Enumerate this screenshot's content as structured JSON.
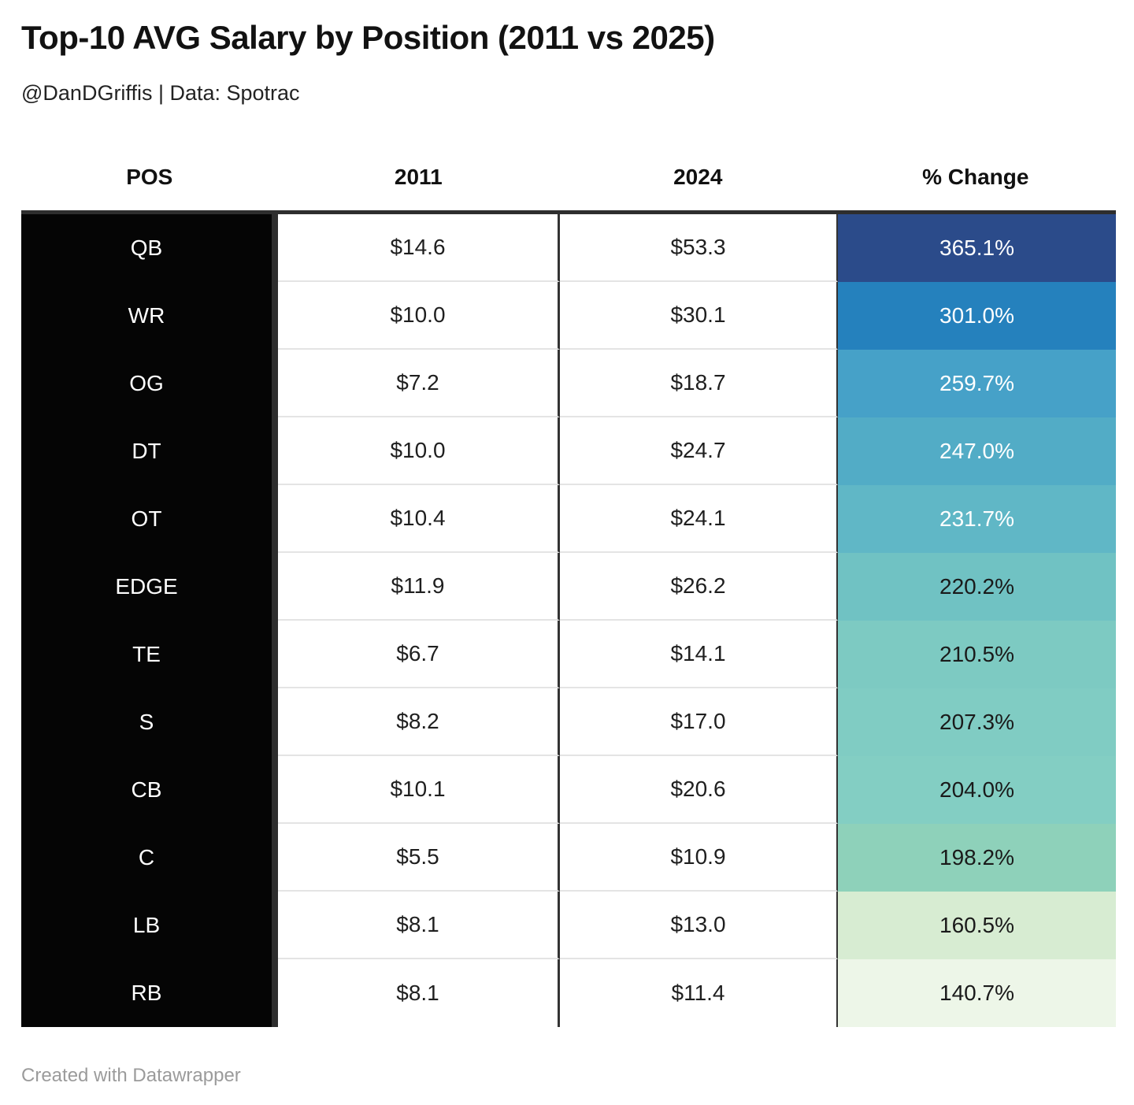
{
  "page": {
    "title": "Top-10 AVG Salary by Position (2011 vs 2025)",
    "subtitle": "@DanDGriffis | Data: Spotrac",
    "footer": "Created with Datawrapper"
  },
  "table": {
    "columns": [
      "POS",
      "2011",
      "2024",
      "% Change"
    ],
    "rows": [
      {
        "pos": "QB",
        "v2011": "$14.6",
        "v2024": "$53.3",
        "change": "365.1%",
        "bg": "#2b4b8a",
        "fg": "#ffffff"
      },
      {
        "pos": "WR",
        "v2011": "$10.0",
        "v2024": "$30.1",
        "change": "301.0%",
        "bg": "#2581bd",
        "fg": "#ffffff"
      },
      {
        "pos": "OG",
        "v2011": "$7.2",
        "v2024": "$18.7",
        "change": "259.7%",
        "bg": "#46a1c8",
        "fg": "#ffffff"
      },
      {
        "pos": "DT",
        "v2011": "$10.0",
        "v2024": "$24.7",
        "change": "247.0%",
        "bg": "#52acc6",
        "fg": "#ffffff"
      },
      {
        "pos": "OT",
        "v2011": "$10.4",
        "v2024": "$24.1",
        "change": "231.7%",
        "bg": "#60b7c6",
        "fg": "#ffffff"
      },
      {
        "pos": "EDGE",
        "v2011": "$11.9",
        "v2024": "$26.2",
        "change": "220.2%",
        "bg": "#70c2c3",
        "fg": "#1a1a1a"
      },
      {
        "pos": "TE",
        "v2011": "$6.7",
        "v2024": "$14.1",
        "change": "210.5%",
        "bg": "#7dcac2",
        "fg": "#1a1a1a"
      },
      {
        "pos": "S",
        "v2011": "$8.2",
        "v2024": "$17.0",
        "change": "207.3%",
        "bg": "#80ccc3",
        "fg": "#1a1a1a"
      },
      {
        "pos": "CB",
        "v2011": "$10.1",
        "v2024": "$20.6",
        "change": "204.0%",
        "bg": "#83cec3",
        "fg": "#1a1a1a"
      },
      {
        "pos": "C",
        "v2011": "$5.5",
        "v2024": "$10.9",
        "change": "198.2%",
        "bg": "#8ed1ba",
        "fg": "#1a1a1a"
      },
      {
        "pos": "LB",
        "v2011": "$8.1",
        "v2024": "$13.0",
        "change": "160.5%",
        "bg": "#d7ecd2",
        "fg": "#1a1a1a"
      },
      {
        "pos": "RB",
        "v2011": "$8.1",
        "v2024": "$11.4",
        "change": "140.7%",
        "bg": "#edf6e8",
        "fg": "#1a1a1a"
      }
    ]
  },
  "colors": {
    "table_top_border": "#2e2e2e",
    "pos_column_bg": "#050505",
    "pos_column_divider": "#2e2e2e",
    "row_separator": "#e4e4e4",
    "cell_text_dark": "#1f1f1f",
    "footer_text": "#9b9b9b"
  },
  "chart_data": {
    "type": "table",
    "title": "Top-10 AVG Salary by Position (2011 vs 2025)",
    "subtitle": "@DanDGriffis | Data: Spotrac",
    "columns": [
      "POS",
      "2011",
      "2024",
      "% Change"
    ],
    "rows": [
      {
        "pos": "QB",
        "salary_2011": 14.6,
        "salary_2024": 53.3,
        "pct_change": 365.1
      },
      {
        "pos": "WR",
        "salary_2011": 10.0,
        "salary_2024": 30.1,
        "pct_change": 301.0
      },
      {
        "pos": "OG",
        "salary_2011": 7.2,
        "salary_2024": 18.7,
        "pct_change": 259.7
      },
      {
        "pos": "DT",
        "salary_2011": 10.0,
        "salary_2024": 24.7,
        "pct_change": 247.0
      },
      {
        "pos": "OT",
        "salary_2011": 10.4,
        "salary_2024": 24.1,
        "pct_change": 231.7
      },
      {
        "pos": "EDGE",
        "salary_2011": 11.9,
        "salary_2024": 26.2,
        "pct_change": 220.2
      },
      {
        "pos": "TE",
        "salary_2011": 6.7,
        "salary_2024": 14.1,
        "pct_change": 210.5
      },
      {
        "pos": "S",
        "salary_2011": 8.2,
        "salary_2024": 17.0,
        "pct_change": 207.3
      },
      {
        "pos": "CB",
        "salary_2011": 10.1,
        "salary_2024": 20.6,
        "pct_change": 204.0
      },
      {
        "pos": "C",
        "salary_2011": 5.5,
        "salary_2024": 10.9,
        "pct_change": 198.2
      },
      {
        "pos": "LB",
        "salary_2011": 8.1,
        "salary_2024": 13.0,
        "pct_change": 160.5
      },
      {
        "pos": "RB",
        "salary_2011": 8.1,
        "salary_2024": 11.4,
        "pct_change": 140.7
      }
    ],
    "layout_hints": {
      "pct_change_color_scale": "dark navy blue (highest) through teal to pale green (lowest)",
      "pos_column_style": "white text on black background",
      "values_are_dollars_millions_displayed_as": "$14.6"
    }
  }
}
